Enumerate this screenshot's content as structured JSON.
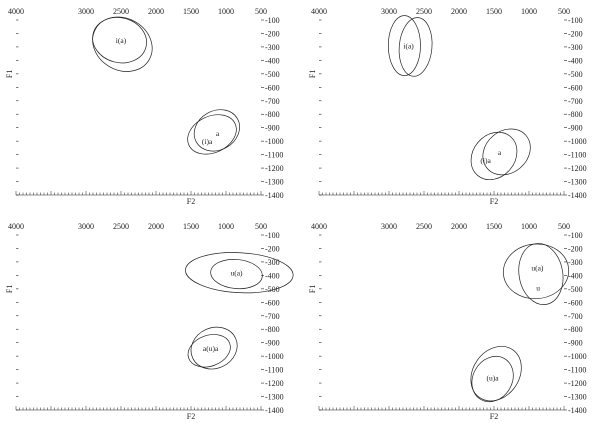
{
  "colors": {
    "ink": "#222222",
    "background": "#ffffff"
  },
  "chart_data": [
    {
      "type": "scatter",
      "xlabel": "F2",
      "ylabel": "F1",
      "xticks": [
        4000,
        3000,
        2500,
        2000,
        1500,
        1000,
        500
      ],
      "yticks": [
        -100,
        -200,
        -300,
        -400,
        -500,
        -600,
        -700,
        -800,
        -900,
        -1000,
        -1100,
        -1200,
        -1300,
        -1400
      ],
      "xlim": [
        4000,
        500
      ],
      "ylim": [
        -100,
        -1400
      ],
      "ellipses": [
        {
          "cx": 2480,
          "cy": -280,
          "rx": 370,
          "ry": 170,
          "angle_deg": 60
        },
        {
          "cx": 2520,
          "cy": -250,
          "rx": 320,
          "ry": 150,
          "angle_deg": 75
        },
        {
          "cx": 1130,
          "cy": -920,
          "rx": 280,
          "ry": 130,
          "angle_deg": -60
        },
        {
          "cx": 1200,
          "cy": -950,
          "rx": 260,
          "ry": 140,
          "angle_deg": -65
        }
      ],
      "labels": [
        {
          "text": "i(a)",
          "x": 2500,
          "y": -250
        },
        {
          "text": "(i)a",
          "x": 1270,
          "y": -1000
        },
        {
          "text": "a",
          "x": 1120,
          "y": -940
        }
      ]
    },
    {
      "type": "scatter",
      "xlabel": "F2",
      "ylabel": "F1",
      "xticks": [
        4000,
        3000,
        2500,
        2000,
        1500,
        1000,
        500
      ],
      "yticks": [
        -100,
        -200,
        -300,
        -400,
        -500,
        -600,
        -700,
        -800,
        -900,
        -1000,
        -1100,
        -1200,
        -1300,
        -1400
      ],
      "xlim": [
        4000,
        500
      ],
      "ylim": [
        -100,
        -1400
      ],
      "ellipses": [
        {
          "cx": 2620,
          "cy": -300,
          "rx": 420,
          "ry": 90,
          "angle_deg": 85
        },
        {
          "cx": 2780,
          "cy": -290,
          "rx": 230,
          "ry": 165,
          "angle_deg": 0
        },
        {
          "cx": 1320,
          "cy": -1080,
          "rx": 300,
          "ry": 140,
          "angle_deg": -50
        },
        {
          "cx": 1500,
          "cy": -1110,
          "rx": 300,
          "ry": 140,
          "angle_deg": -40
        }
      ],
      "labels": [
        {
          "text": "i(a)",
          "x": 2720,
          "y": -290
        },
        {
          "text": "(i)a",
          "x": 1620,
          "y": -1140
        },
        {
          "text": "a",
          "x": 1420,
          "y": -1080
        }
      ]
    },
    {
      "type": "scatter",
      "xlabel": "F2",
      "ylabel": "F1",
      "xticks": [
        4000,
        3000,
        2500,
        2000,
        1500,
        1000,
        500
      ],
      "yticks": [
        -100,
        -200,
        -300,
        -400,
        -500,
        -600,
        -700,
        -800,
        -900,
        -1000,
        -1100,
        -1200,
        -1300,
        -1400
      ],
      "xlim": [
        4000,
        500
      ],
      "ylim": [
        -100,
        -1400
      ],
      "ellipses": [
        {
          "cx": 810,
          "cy": -380,
          "rx": 770,
          "ry": 110,
          "angle_deg": -3
        },
        {
          "cx": 850,
          "cy": -390,
          "rx": 370,
          "ry": 80,
          "angle_deg": -5
        },
        {
          "cx": 1170,
          "cy": -940,
          "rx": 290,
          "ry": 130,
          "angle_deg": -65
        },
        {
          "cx": 1240,
          "cy": -960,
          "rx": 220,
          "ry": 120,
          "angle_deg": -70
        }
      ],
      "labels": [
        {
          "text": "u(a)",
          "x": 850,
          "y": -380
        },
        {
          "text": "a(u)a",
          "x": 1220,
          "y": -940
        }
      ]
    },
    {
      "type": "scatter",
      "xlabel": "F2",
      "ylabel": "F1",
      "xticks": [
        4000,
        3000,
        2500,
        2000,
        1500,
        1000,
        500
      ],
      "yticks": [
        -100,
        -200,
        -300,
        -400,
        -500,
        -600,
        -700,
        -800,
        -900,
        -1000,
        -1100,
        -1200,
        -1300,
        -1400
      ],
      "xlim": [
        4000,
        500
      ],
      "ylim": [
        -100,
        -1400
      ],
      "ellipses": [
        {
          "cx": 900,
          "cy": -370,
          "rx": 390,
          "ry": 180,
          "angle_deg": 95
        },
        {
          "cx": 830,
          "cy": -390,
          "rx": 440,
          "ry": 120,
          "angle_deg": 100
        },
        {
          "cx": 1470,
          "cy": -1130,
          "rx": 330,
          "ry": 160,
          "angle_deg": -35
        },
        {
          "cx": 1520,
          "cy": -1170,
          "rx": 280,
          "ry": 130,
          "angle_deg": -30
        }
      ],
      "labels": [
        {
          "text": "u(a)",
          "x": 880,
          "y": -340
        },
        {
          "text": "u",
          "x": 870,
          "y": -490
        },
        {
          "text": "(u)a",
          "x": 1520,
          "y": -1160
        }
      ]
    }
  ]
}
